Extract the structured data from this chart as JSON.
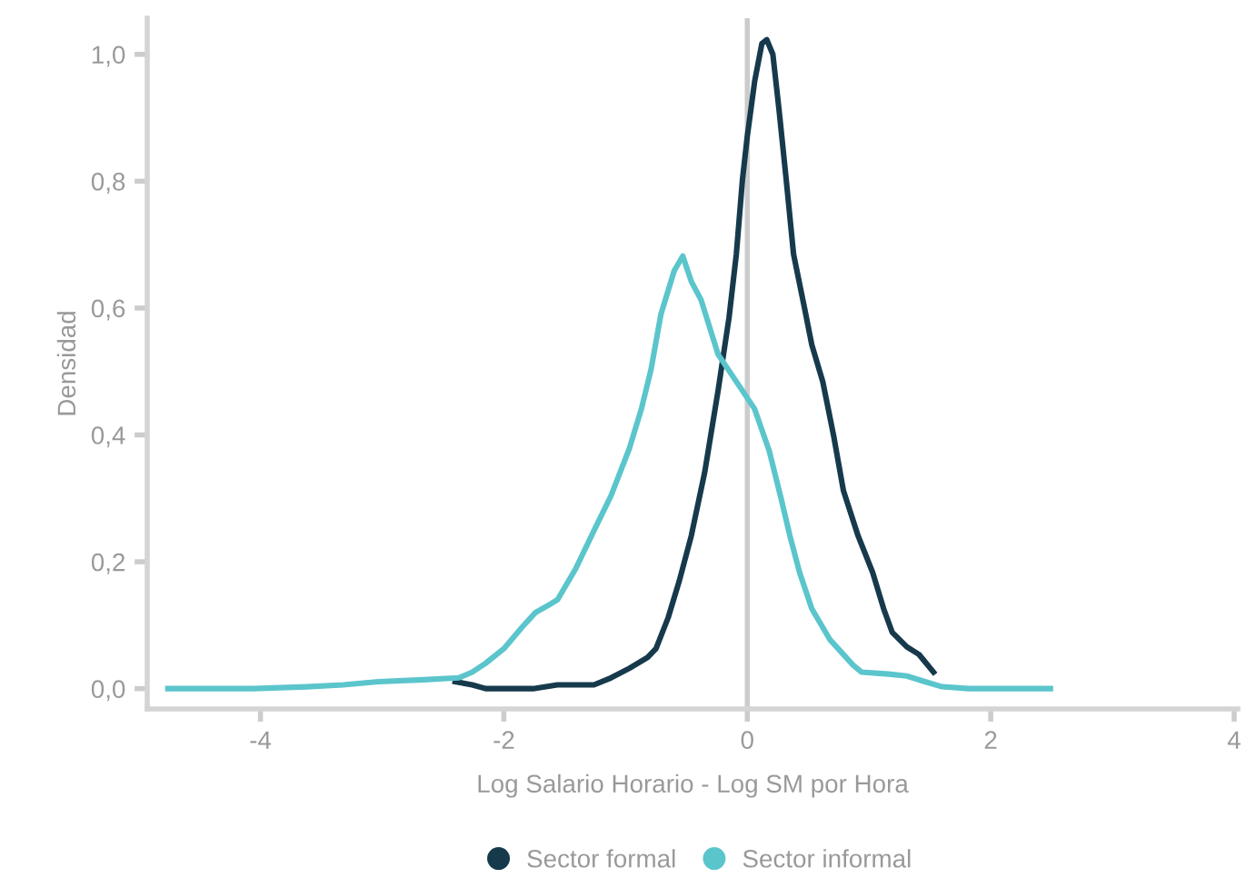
{
  "chart_data": {
    "type": "line",
    "xlabel": "Log Salario Horario - Log SM por Hora",
    "ylabel": "Densidad",
    "xlim": [
      -4.93,
      4.03
    ],
    "ylim": [
      -0.032,
      1.057
    ],
    "xticks": [
      {
        "value": -4,
        "label": "-4"
      },
      {
        "value": -2,
        "label": "-2"
      },
      0,
      2,
      4
    ],
    "yticks": [
      {
        "value": 0,
        "label": "0,0"
      },
      {
        "value": 0.2,
        "label": "0,2"
      },
      {
        "value": 0.4,
        "label": "0,4"
      },
      {
        "value": 0.6,
        "label": "0,6"
      },
      {
        "value": 0.8,
        "label": "0,8"
      },
      {
        "value": 1.0,
        "label": "1,0"
      }
    ],
    "grid": false,
    "legend": "bottom",
    "marker": "none",
    "line_style": "solid",
    "ref_lines": [
      {
        "axis": "x",
        "value": 0,
        "color": "#cccccc"
      }
    ],
    "series": [
      {
        "name": "Sector formal",
        "color": "#163a4c",
        "x": [
          -2.4,
          -2.26,
          -2.15,
          -1.76,
          -1.56,
          -1.26,
          -1.12,
          -0.97,
          -0.82,
          -0.75,
          -0.65,
          -0.56,
          -0.46,
          -0.35,
          -0.24,
          -0.15,
          -0.09,
          -0.04,
          0,
          0.06,
          0.12,
          0.16,
          0.21,
          0.26,
          0.32,
          0.38,
          0.47,
          0.53,
          0.62,
          0.71,
          0.79,
          0.91,
          1.03,
          1.12,
          1.19,
          1.31,
          1.41,
          1.53
        ],
        "values": [
          0.011,
          0.006,
          0,
          0,
          0.006,
          0.006,
          0.017,
          0.032,
          0.049,
          0.063,
          0.112,
          0.169,
          0.241,
          0.341,
          0.47,
          0.585,
          0.685,
          0.802,
          0.871,
          0.957,
          1.017,
          1.023,
          1.0,
          0.914,
          0.802,
          0.685,
          0.6,
          0.542,
          0.484,
          0.398,
          0.312,
          0.241,
          0.183,
          0.126,
          0.089,
          0.066,
          0.054,
          0.026
        ]
      },
      {
        "name": "Sector informal",
        "color": "#5bc5cc",
        "x": [
          -4.76,
          -4.5,
          -4.06,
          -3.62,
          -3.32,
          -3.03,
          -2.66,
          -2.37,
          -2.26,
          -2.15,
          -2.0,
          -1.85,
          -1.74,
          -1.63,
          -1.56,
          -1.41,
          -1.26,
          -1.12,
          -0.97,
          -0.87,
          -0.79,
          -0.71,
          -0.6,
          -0.53,
          -0.46,
          -0.38,
          -0.31,
          -0.24,
          -0.09,
          0.06,
          0.18,
          0.28,
          0.35,
          0.43,
          0.53,
          0.68,
          0.87,
          0.94,
          1.16,
          1.31,
          1.46,
          1.6,
          1.82,
          2.12,
          2.49
        ],
        "values": [
          0,
          0,
          0,
          0.003,
          0.006,
          0.011,
          0.014,
          0.017,
          0.026,
          0.04,
          0.063,
          0.097,
          0.12,
          0.132,
          0.14,
          0.189,
          0.249,
          0.304,
          0.378,
          0.441,
          0.504,
          0.59,
          0.659,
          0.682,
          0.642,
          0.613,
          0.57,
          0.527,
          0.484,
          0.441,
          0.375,
          0.298,
          0.241,
          0.183,
          0.126,
          0.077,
          0.037,
          0.026,
          0.023,
          0.02,
          0.011,
          0.003,
          0,
          0,
          0
        ]
      }
    ]
  }
}
